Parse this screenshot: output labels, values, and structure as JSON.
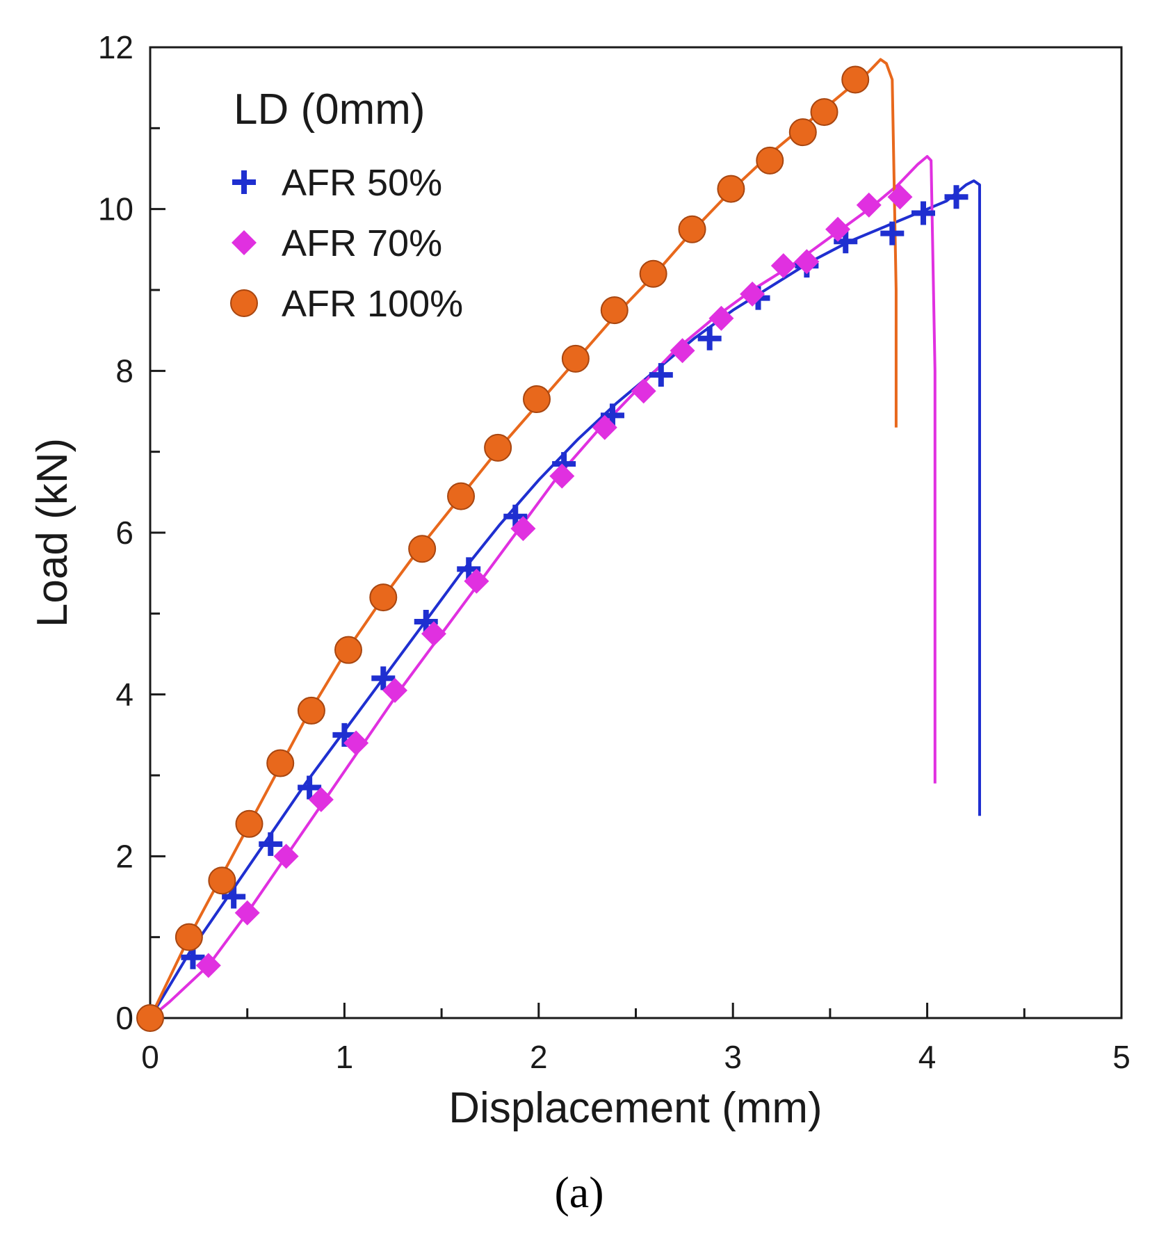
{
  "chart_data": {
    "type": "line",
    "xlabel": "Displacement (mm)",
    "ylabel": "Load (kN)",
    "xlim": [
      0,
      5
    ],
    "ylim": [
      0,
      12
    ],
    "xticks": [
      0,
      1,
      2,
      3,
      4,
      5
    ],
    "yticks": [
      0,
      2,
      4,
      6,
      8,
      10,
      12
    ],
    "grid": false,
    "legend": {
      "title": "LD (0mm)",
      "placement": "top-left"
    },
    "caption": "(a)",
    "series": [
      {
        "name": "AFR 50%",
        "color": "#1f2fd0",
        "marker": "plus",
        "x": [
          0,
          0.1,
          0.2,
          0.4,
          0.6,
          0.8,
          1.0,
          1.2,
          1.4,
          1.6,
          1.8,
          2.0,
          2.2,
          2.4,
          2.6,
          2.8,
          3.0,
          3.2,
          3.4,
          3.6,
          3.8,
          4.0,
          4.1,
          4.2,
          4.24,
          4.27,
          4.27
        ],
        "y": [
          0,
          0.4,
          0.8,
          1.5,
          2.2,
          2.9,
          3.55,
          4.2,
          4.85,
          5.5,
          6.1,
          6.65,
          7.15,
          7.6,
          8.0,
          8.4,
          8.75,
          9.05,
          9.35,
          9.6,
          9.8,
          10.0,
          10.1,
          10.3,
          10.35,
          10.3,
          2.5
        ],
        "markers": {
          "x": [
            0,
            0.22,
            0.43,
            0.62,
            0.82,
            1.0,
            1.2,
            1.42,
            1.64,
            1.88,
            2.13,
            2.38,
            2.63,
            2.88,
            3.13,
            3.38,
            3.58,
            3.82,
            3.98,
            4.15
          ],
          "y": [
            0,
            0.75,
            1.5,
            2.15,
            2.85,
            3.5,
            4.2,
            4.9,
            5.55,
            6.2,
            6.85,
            7.45,
            7.95,
            8.4,
            8.9,
            9.3,
            9.6,
            9.7,
            9.95,
            10.15
          ]
        }
      },
      {
        "name": "AFR 70%",
        "color": "#e030e0",
        "marker": "diamond",
        "x": [
          0,
          0.1,
          0.3,
          0.5,
          0.7,
          0.9,
          1.1,
          1.3,
          1.5,
          1.7,
          1.9,
          2.1,
          2.3,
          2.5,
          2.7,
          2.9,
          3.1,
          3.3,
          3.5,
          3.7,
          3.85,
          3.95,
          4.0,
          4.02,
          4.04,
          4.04
        ],
        "y": [
          0,
          0.2,
          0.65,
          1.3,
          2.0,
          2.7,
          3.4,
          4.1,
          4.75,
          5.4,
          6.05,
          6.7,
          7.25,
          7.75,
          8.25,
          8.65,
          9.0,
          9.3,
          9.65,
          10.0,
          10.3,
          10.55,
          10.65,
          10.6,
          8.0,
          2.9
        ],
        "markers": {
          "x": [
            0,
            0.3,
            0.5,
            0.7,
            0.88,
            1.06,
            1.26,
            1.46,
            1.68,
            1.92,
            2.12,
            2.34,
            2.54,
            2.74,
            2.94,
            3.1,
            3.26,
            3.38,
            3.54,
            3.7,
            3.86
          ],
          "y": [
            0,
            0.65,
            1.3,
            2.0,
            2.7,
            3.4,
            4.05,
            4.75,
            5.4,
            6.05,
            6.7,
            7.3,
            7.75,
            8.25,
            8.65,
            8.95,
            9.3,
            9.35,
            9.75,
            10.05,
            10.15
          ]
        }
      },
      {
        "name": "AFR 100%",
        "color": "#e8681c",
        "marker": "circle",
        "x": [
          0,
          0.2,
          0.4,
          0.6,
          0.8,
          1.0,
          1.2,
          1.4,
          1.6,
          1.8,
          2.0,
          2.2,
          2.4,
          2.6,
          2.8,
          3.0,
          3.2,
          3.4,
          3.6,
          3.7,
          3.76,
          3.79,
          3.82,
          3.84,
          3.84
        ],
        "y": [
          0,
          1.0,
          1.9,
          2.8,
          3.7,
          4.5,
          5.2,
          5.85,
          6.45,
          7.05,
          7.6,
          8.15,
          8.7,
          9.2,
          9.75,
          10.25,
          10.7,
          11.1,
          11.5,
          11.7,
          11.85,
          11.8,
          11.6,
          9.0,
          7.3
        ],
        "markers": {
          "x": [
            0,
            0.2,
            0.37,
            0.51,
            0.67,
            0.83,
            1.02,
            1.2,
            1.4,
            1.6,
            1.79,
            1.99,
            2.19,
            2.39,
            2.59,
            2.79,
            2.99,
            3.19,
            3.36,
            3.47,
            3.63
          ],
          "y": [
            0,
            1.0,
            1.7,
            2.4,
            3.15,
            3.8,
            4.55,
            5.2,
            5.8,
            6.45,
            7.05,
            7.65,
            8.15,
            8.75,
            9.2,
            9.75,
            10.25,
            10.6,
            10.95,
            11.2,
            11.6
          ]
        }
      }
    ]
  }
}
